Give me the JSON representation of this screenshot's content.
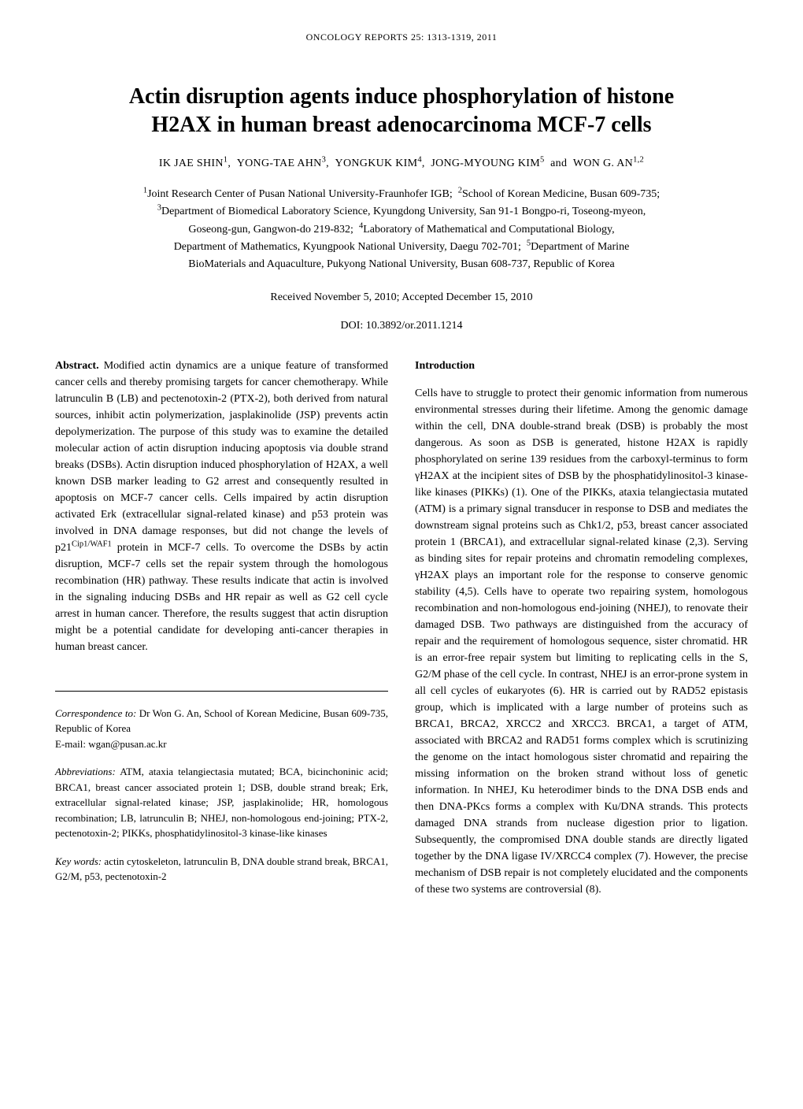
{
  "journal_header": "ONCOLOGY REPORTS  25:  1313-1319,  2011",
  "title_line1": "Actin disruption agents induce phosphorylation of histone",
  "title_line2": "H2AX in human breast adenocarcinoma MCF-7 cells",
  "authors_html": "IK JAE SHIN<sup>1</sup>,&nbsp;&nbsp;YONG-TAE AHN<sup>3</sup>,&nbsp;&nbsp;YONGKUK KIM<sup>4</sup>,&nbsp;&nbsp;JONG-MYOUNG KIM<sup>5</sup>&nbsp;&nbsp;and&nbsp;&nbsp;WON G. AN<sup>1,2</sup>",
  "affiliations_html": "<sup>1</sup>Joint Research Center of Pusan National University-Fraunhofer IGB;&nbsp;&nbsp;<sup>2</sup>School of Korean Medicine, Busan 609-735;<br><sup>3</sup>Department of Biomedical Laboratory Science, Kyungdong University, San 91-1 Bongpo-ri, Toseong-myeon,<br>Goseong-gun, Gangwon-do 219-832;&nbsp;&nbsp;<sup>4</sup>Laboratory of Mathematical and Computational Biology,<br>Department of Mathematics, Kyungpook National University, Daegu 702-701;&nbsp;&nbsp;<sup>5</sup>Department of Marine<br>BioMaterials and Aquaculture, Pukyong National University, Busan 608-737, Republic of Korea",
  "received": "Received November 5, 2010;   Accepted December 15, 2010",
  "doi": "DOI: 10.3892/or.2011.1214",
  "abstract_label": "Abstract.",
  "abstract_body_html": " Modified actin dynamics are a unique feature of transformed cancer cells and thereby promising targets for cancer chemotherapy. While latrunculin B (LB) and pectenotoxin-2 (PTX-2), both derived from natural sources, inhibit actin polymerization, jasplakinolide (JSP) prevents actin depolymerization. The purpose of this study was to examine the detailed molecular action of actin disruption inducing apoptosis via double strand breaks (DSBs). Actin disruption induced phosphorylation of H2AX, a well known DSB marker leading to G2 arrest and consequently resulted in apoptosis on MCF-7 cancer cells. Cells impaired by actin disruption activated Erk (extracellular signal-related kinase) and p53 protein was involved in DNA damage responses, but did not change the levels of p21<sup>Cip1/WAF1</sup> protein in MCF-7 cells. To overcome the DSBs by actin disruption, MCF-7 cells set the repair system through the homologous recombination (HR) pathway. These results indicate that actin is involved in the signaling inducing DSBs and HR repair as well as G2 cell cycle arrest in human cancer. Therefore, the results suggest that actin disruption might be a potential candidate for developing anti-cancer therapies in human breast cancer.",
  "correspondence_label": "Correspondence to:",
  "correspondence_body_html": " Dr Won G. An, School of Korean Medicine, Busan 609-735, Republic of Korea<br>E-mail: wgan@pusan.ac.kr",
  "abbreviations_label": "Abbreviations:",
  "abbreviations_body": " ATM, ataxia telangiectasia mutated; BCA, bicinchoninic acid; BRCA1, breast cancer associated protein 1; DSB, double strand break; Erk, extracellular signal-related kinase; JSP, jasplakinolide; HR, homologous recombination; LB, latrunculin B; NHEJ, non-homologous end-joining; PTX-2, pectenotoxin-2; PIKKs, phosphatidylinositol-3 kinase-like kinases",
  "keywords_label": "Key words:",
  "keywords_body": " actin cytoskeleton, latrunculin B, DNA double strand break, BRCA1, G2/M, p53, pectenotoxin-2",
  "introduction_heading": "Introduction",
  "introduction_body": "Cells have to struggle to protect their genomic information from numerous environmental stresses during their lifetime. Among the genomic damage within the cell, DNA double-strand break (DSB) is probably the most dangerous. As soon as DSB is generated, histone H2AX is rapidly phosphorylated on serine 139 residues from the carboxyl-terminus to form γH2AX at the incipient sites of DSB by the phosphatidylinositol-3 kinase-like kinases (PIKKs) (1). One of the PIKKs, ataxia telangiectasia mutated (ATM) is a primary signal transducer in response to DSB and mediates the downstream signal proteins such as Chk1/2, p53, breast cancer associated protein 1 (BRCA1), and extracellular signal-related kinase (2,3). Serving as binding sites for repair proteins and chromatin remodeling complexes, γH2AX plays an important role for the response to conserve genomic stability (4,5). Cells have to operate two repairing system, homologous recombination and non-homologous end-joining (NHEJ), to renovate their damaged DSB. Two pathways are distinguished from the accuracy of repair and the requirement of homologous sequence, sister chromatid. HR is an error-free repair system but limiting to replicating cells in the S, G2/M phase of the cell cycle. In contrast, NHEJ is an error-prone system in all cell cycles of eukaryotes (6). HR is carried out by RAD52 epistasis group, which is implicated with a large number of proteins such as BRCA1, BRCA2, XRCC2 and XRCC3. BRCA1, a target of ATM, associated with BRCA2 and RAD51 forms complex which is scrutinizing the genome on the intact homologous sister chromatid and repairing the missing information on the broken strand without loss of genetic information. In NHEJ, Ku heterodimer binds to the DNA DSB ends and then DNA-PKcs forms a complex with Ku/DNA strands. This protects damaged DNA strands from nuclease digestion prior to ligation. Subsequently, the compromised DNA double stands are directly ligated together by the DNA ligase IV/XRCC4 complex (7). However, the precise mechanism of DSB repair is not completely elucidated and the components of these two systems are controversial (8)."
}
